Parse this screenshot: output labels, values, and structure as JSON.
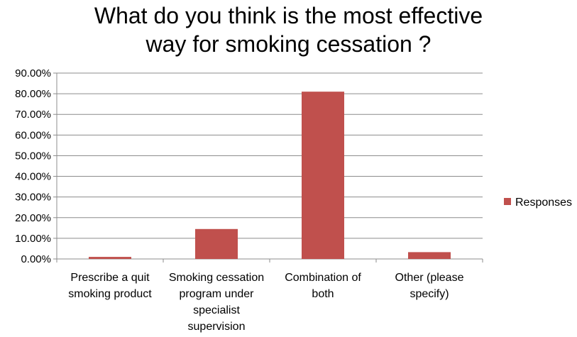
{
  "chart_data": {
    "type": "bar",
    "title_lines": [
      "What do you think is the most effective",
      "way for smoking cessation ?"
    ],
    "categories": [
      [
        "Prescribe a quit",
        "smoking product"
      ],
      [
        "Smoking cessation",
        "program under",
        "specialist",
        "supervision"
      ],
      [
        "Combination of",
        "both"
      ],
      [
        "Other (please",
        "specify)"
      ]
    ],
    "series": [
      {
        "name": "Responses",
        "color": "#c0504d",
        "values": [
          1.0,
          14.5,
          81.0,
          3.3
        ]
      }
    ],
    "ylim": [
      0,
      90
    ],
    "ytick_step": 10,
    "ytick_labels": [
      "0.00%",
      "10.00%",
      "20.00%",
      "30.00%",
      "40.00%",
      "50.00%",
      "60.00%",
      "70.00%",
      "80.00%",
      "90.00%"
    ],
    "grid": true,
    "legend_position": "right"
  }
}
